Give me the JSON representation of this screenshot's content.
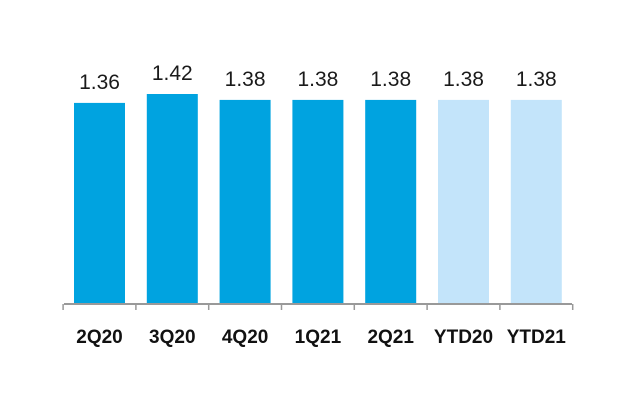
{
  "chart_data": {
    "type": "bar",
    "title": "",
    "xlabel": "",
    "ylabel": "",
    "categories": [
      "2Q20",
      "3Q20",
      "4Q20",
      "1Q21",
      "2Q21",
      "YTD20",
      "YTD21"
    ],
    "values": [
      1.36,
      1.42,
      1.38,
      1.38,
      1.38,
      1.38,
      1.38
    ],
    "value_labels": [
      "1.36",
      "1.42",
      "1.38",
      "1.38",
      "1.38",
      "1.38",
      "1.38"
    ],
    "bar_colors": [
      "#00a3e0",
      "#00a3e0",
      "#00a3e0",
      "#00a3e0",
      "#00a3e0",
      "#c3e4fa",
      "#c3e4fa"
    ],
    "axis_color": "#999999",
    "ylim": [
      0,
      1.42
    ],
    "grid": false,
    "legend": "none"
  }
}
